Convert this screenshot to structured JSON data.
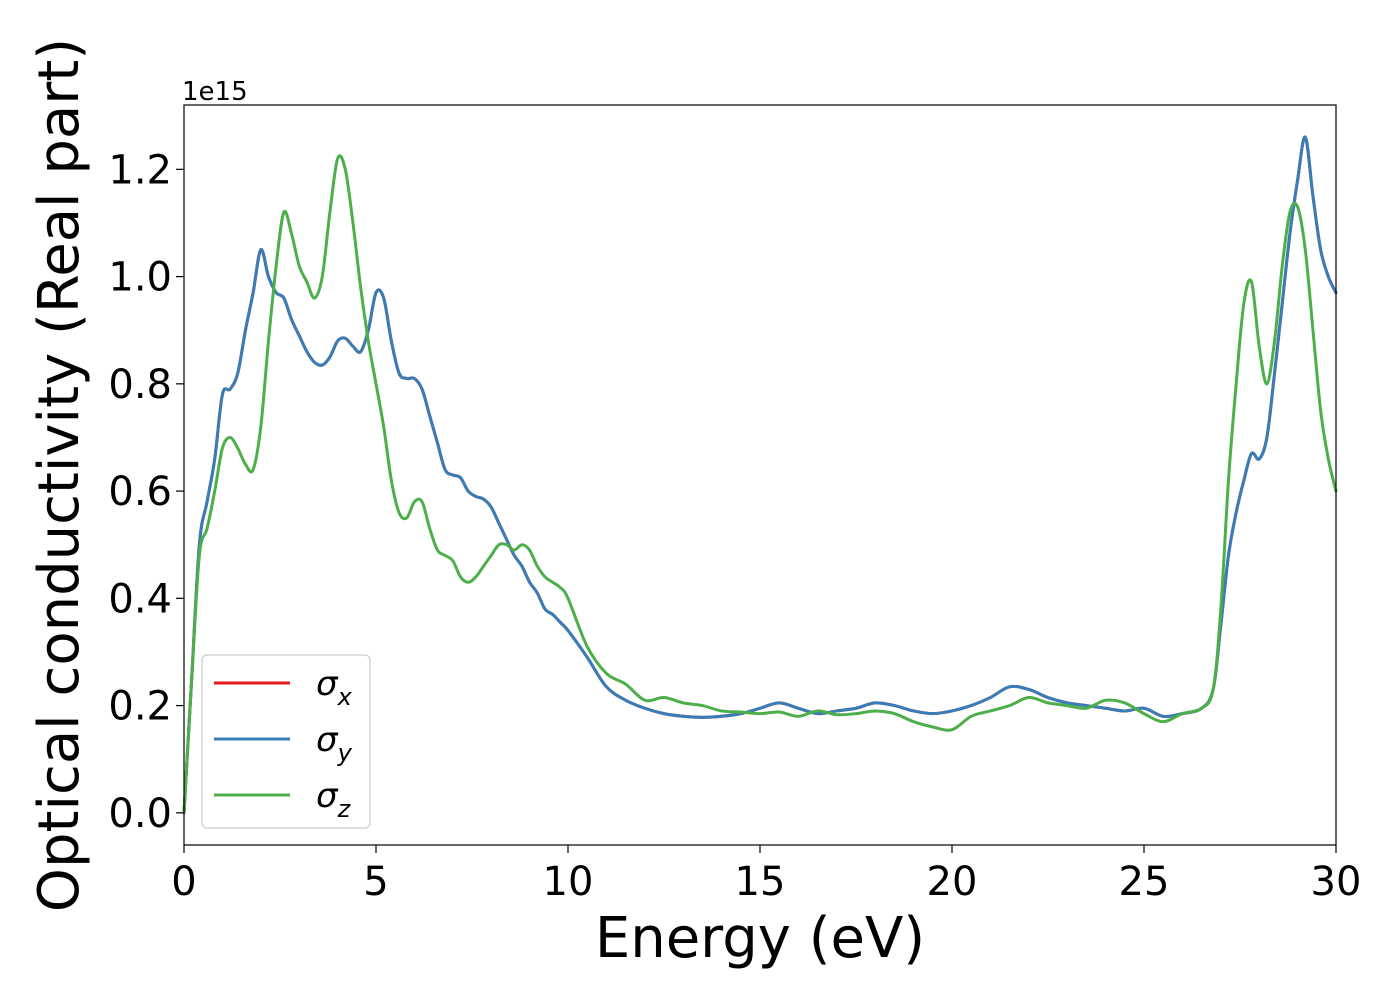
{
  "chart_data": {
    "type": "line",
    "title": "",
    "xlabel": "Energy (eV)",
    "ylabel": "Optical conductivity (Real part)",
    "y_offset_label": "1e15",
    "xlim": [
      0,
      30
    ],
    "ylim": [
      -0.06,
      1.32
    ],
    "xticks": [
      0,
      5,
      10,
      15,
      20,
      25,
      30
    ],
    "xtick_labels": [
      "0",
      "5",
      "10",
      "15",
      "20",
      "25",
      "30"
    ],
    "yticks": [
      0.0,
      0.2,
      0.4,
      0.6,
      0.8,
      1.0,
      1.2
    ],
    "ytick_labels": [
      "0.0",
      "0.2",
      "0.4",
      "0.6",
      "0.8",
      "1.0",
      "1.2"
    ],
    "grid": false,
    "legend_position": "lower-left",
    "x": [
      0,
      0.2,
      0.4,
      0.6,
      0.8,
      1.0,
      1.2,
      1.4,
      1.6,
      1.8,
      2.0,
      2.2,
      2.4,
      2.6,
      2.8,
      3.0,
      3.2,
      3.4,
      3.6,
      3.8,
      4.0,
      4.2,
      4.4,
      4.6,
      4.8,
      5.0,
      5.2,
      5.4,
      5.6,
      5.8,
      6.0,
      6.2,
      6.4,
      6.6,
      6.8,
      7.0,
      7.2,
      7.4,
      7.6,
      7.8,
      8.0,
      8.2,
      8.4,
      8.6,
      8.8,
      9.0,
      9.2,
      9.4,
      9.6,
      9.8,
      10.0,
      10.5,
      11.0,
      11.5,
      12.0,
      12.5,
      13.0,
      13.5,
      14.0,
      14.5,
      15.0,
      15.5,
      16.0,
      16.5,
      17.0,
      17.5,
      18.0,
      18.5,
      19.0,
      19.5,
      20.0,
      20.5,
      21.0,
      21.5,
      22.0,
      22.5,
      23.0,
      23.5,
      24.0,
      24.5,
      25.0,
      25.5,
      26.0,
      26.5,
      26.8,
      27.0,
      27.2,
      27.4,
      27.6,
      27.8,
      28.0,
      28.2,
      28.4,
      28.6,
      28.8,
      29.0,
      29.2,
      29.4,
      29.6,
      29.8,
      30.0
    ],
    "series": [
      {
        "name": "σx",
        "color": "#e41a1c",
        "values": [
          0.0,
          0.25,
          0.5,
          0.58,
          0.66,
          0.78,
          0.79,
          0.82,
          0.9,
          0.97,
          1.05,
          1.0,
          0.97,
          0.96,
          0.92,
          0.89,
          0.86,
          0.84,
          0.835,
          0.85,
          0.88,
          0.885,
          0.87,
          0.86,
          0.9,
          0.97,
          0.96,
          0.88,
          0.82,
          0.81,
          0.81,
          0.79,
          0.74,
          0.69,
          0.64,
          0.63,
          0.625,
          0.6,
          0.59,
          0.585,
          0.57,
          0.54,
          0.51,
          0.48,
          0.46,
          0.43,
          0.41,
          0.38,
          0.37,
          0.355,
          0.34,
          0.29,
          0.235,
          0.21,
          0.195,
          0.185,
          0.18,
          0.178,
          0.18,
          0.185,
          0.195,
          0.205,
          0.195,
          0.185,
          0.19,
          0.195,
          0.205,
          0.2,
          0.19,
          0.185,
          0.19,
          0.2,
          0.215,
          0.235,
          0.23,
          0.215,
          0.205,
          0.2,
          0.195,
          0.19,
          0.195,
          0.18,
          0.185,
          0.195,
          0.23,
          0.35,
          0.48,
          0.56,
          0.62,
          0.67,
          0.66,
          0.7,
          0.82,
          0.95,
          1.08,
          1.18,
          1.26,
          1.15,
          1.05,
          1.0,
          0.97
        ]
      },
      {
        "name": "σy",
        "color": "#377eb8",
        "values": [
          0.0,
          0.25,
          0.5,
          0.58,
          0.66,
          0.78,
          0.79,
          0.82,
          0.9,
          0.97,
          1.05,
          1.0,
          0.97,
          0.96,
          0.92,
          0.89,
          0.86,
          0.84,
          0.835,
          0.85,
          0.88,
          0.885,
          0.87,
          0.86,
          0.9,
          0.97,
          0.96,
          0.88,
          0.82,
          0.81,
          0.81,
          0.79,
          0.74,
          0.69,
          0.64,
          0.63,
          0.625,
          0.6,
          0.59,
          0.585,
          0.57,
          0.54,
          0.51,
          0.48,
          0.46,
          0.43,
          0.41,
          0.38,
          0.37,
          0.355,
          0.34,
          0.29,
          0.235,
          0.21,
          0.195,
          0.185,
          0.18,
          0.178,
          0.18,
          0.185,
          0.195,
          0.205,
          0.195,
          0.185,
          0.19,
          0.195,
          0.205,
          0.2,
          0.19,
          0.185,
          0.19,
          0.2,
          0.215,
          0.235,
          0.23,
          0.215,
          0.205,
          0.2,
          0.195,
          0.19,
          0.195,
          0.18,
          0.185,
          0.195,
          0.23,
          0.35,
          0.48,
          0.56,
          0.62,
          0.67,
          0.66,
          0.7,
          0.82,
          0.95,
          1.08,
          1.18,
          1.26,
          1.15,
          1.05,
          1.0,
          0.97
        ]
      },
      {
        "name": "σz",
        "color": "#4daf4a",
        "values": [
          0.0,
          0.25,
          0.48,
          0.53,
          0.6,
          0.68,
          0.7,
          0.68,
          0.65,
          0.64,
          0.72,
          0.88,
          1.02,
          1.12,
          1.08,
          1.02,
          0.99,
          0.96,
          1.0,
          1.12,
          1.22,
          1.2,
          1.1,
          0.98,
          0.88,
          0.8,
          0.72,
          0.62,
          0.56,
          0.55,
          0.58,
          0.58,
          0.53,
          0.49,
          0.48,
          0.47,
          0.44,
          0.43,
          0.44,
          0.46,
          0.48,
          0.5,
          0.5,
          0.49,
          0.5,
          0.49,
          0.46,
          0.44,
          0.43,
          0.42,
          0.4,
          0.31,
          0.26,
          0.24,
          0.21,
          0.215,
          0.205,
          0.2,
          0.19,
          0.188,
          0.185,
          0.188,
          0.18,
          0.19,
          0.183,
          0.185,
          0.19,
          0.185,
          0.17,
          0.16,
          0.155,
          0.18,
          0.19,
          0.2,
          0.215,
          0.205,
          0.2,
          0.195,
          0.21,
          0.205,
          0.185,
          0.17,
          0.185,
          0.195,
          0.23,
          0.38,
          0.62,
          0.8,
          0.95,
          0.99,
          0.87,
          0.8,
          0.88,
          1.02,
          1.12,
          1.13,
          1.05,
          0.9,
          0.75,
          0.66,
          0.6
        ]
      }
    ]
  }
}
